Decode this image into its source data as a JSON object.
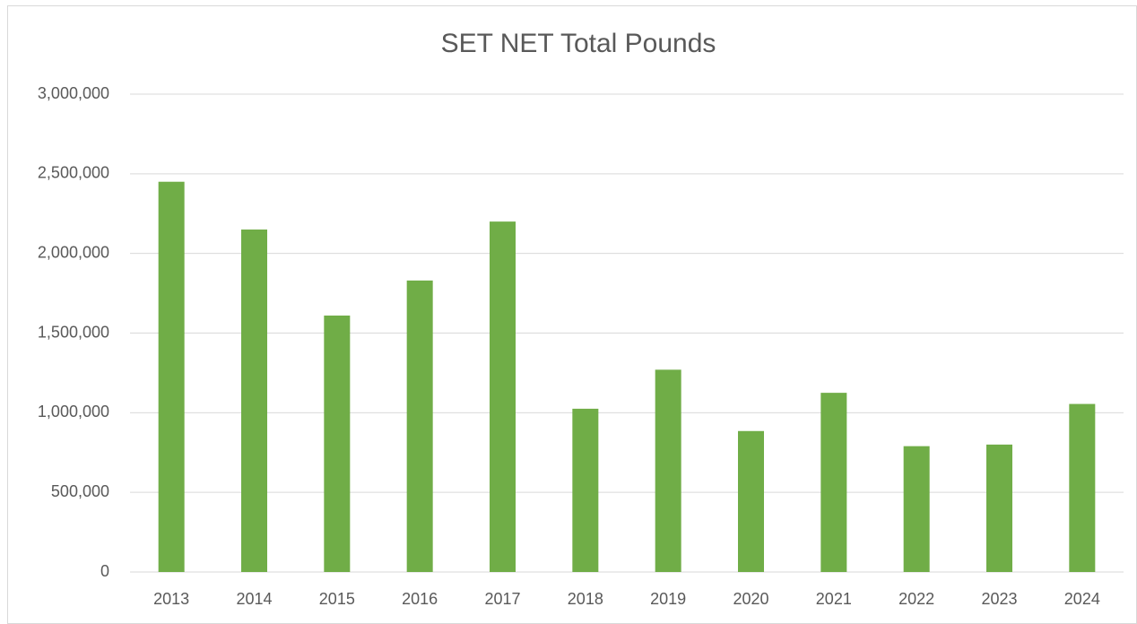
{
  "chart_data": {
    "type": "bar",
    "title": "SET NET Total Pounds",
    "categories": [
      "2013",
      "2014",
      "2015",
      "2016",
      "2017",
      "2018",
      "2019",
      "2020",
      "2021",
      "2022",
      "2023",
      "2024"
    ],
    "values": [
      2450000,
      2150000,
      1610000,
      1830000,
      2200000,
      1025000,
      1270000,
      885000,
      1125000,
      790000,
      800000,
      1055000
    ],
    "color": "#70ad47",
    "ylim": [
      0,
      3000000
    ],
    "yticks": [
      0,
      {
        "value": 500000,
        "label": "500,000"
      },
      {
        "value": 1000000,
        "label": "1,000,000"
      },
      {
        "value": 1500000,
        "label": "1,500,000"
      },
      {
        "value": 2000000,
        "label": "2,000,000"
      },
      {
        "value": 2500000,
        "label": "2,500,000"
      },
      {
        "value": 3000000,
        "label": "3,000,000"
      }
    ],
    "grid": true
  }
}
